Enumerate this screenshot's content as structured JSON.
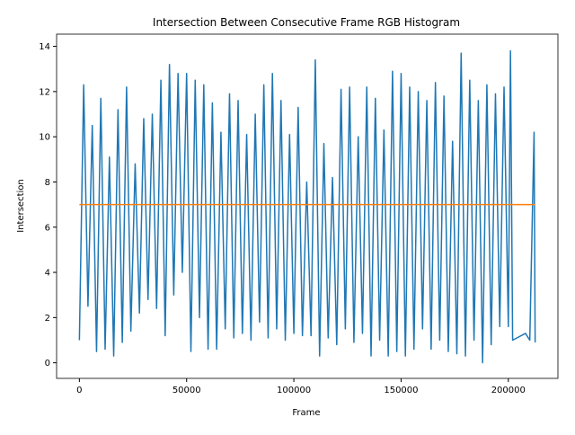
{
  "chart_data": {
    "type": "line",
    "title": "Intersection Between Consecutive Frame RGB Histogram",
    "x_label": "Frame",
    "y_label": "Intersection",
    "x": [
      0,
      2000,
      4000,
      6000,
      8000,
      10000,
      12000,
      14000,
      16000,
      18000,
      20000,
      22000,
      24000,
      26000,
      28000,
      30000,
      32000,
      34000,
      36000,
      38000,
      40000,
      42000,
      44000,
      46000,
      48000,
      50000,
      52000,
      54000,
      56000,
      58000,
      60000,
      62000,
      64000,
      66000,
      68000,
      70000,
      72000,
      74000,
      76000,
      78000,
      80000,
      82000,
      84000,
      86000,
      88000,
      90000,
      92000,
      94000,
      96000,
      98000,
      100000,
      102000,
      104000,
      106000,
      108000,
      110000,
      112000,
      114000,
      116000,
      118000,
      120000,
      122000,
      124000,
      126000,
      128000,
      130000,
      132000,
      134000,
      136000,
      138000,
      140000,
      142000,
      144000,
      146000,
      148000,
      150000,
      152000,
      154000,
      156000,
      158000,
      160000,
      162000,
      164000,
      166000,
      168000,
      170000,
      172000,
      174000,
      176000,
      178000,
      180000,
      182000,
      184000,
      186000,
      188000,
      190000,
      192000,
      194000,
      196000,
      198000,
      200000,
      201000,
      202000,
      204000,
      206000,
      208000,
      210000,
      212000,
      212500
    ],
    "series": [
      {
        "color": "#1f77b4",
        "values": [
          1.0,
          12.3,
          2.5,
          10.5,
          0.5,
          11.7,
          0.6,
          9.1,
          0.3,
          11.2,
          0.9,
          12.2,
          1.4,
          8.8,
          2.2,
          10.8,
          2.8,
          11.0,
          2.4,
          12.5,
          1.2,
          13.2,
          3.0,
          12.8,
          4.0,
          12.8,
          0.5,
          12.5,
          2.0,
          12.3,
          0.6,
          11.5,
          0.6,
          10.2,
          1.5,
          11.9,
          1.1,
          11.6,
          1.3,
          10.1,
          1.0,
          11.0,
          1.8,
          12.3,
          1.1,
          12.8,
          1.5,
          11.6,
          1.0,
          10.1,
          1.3,
          11.3,
          1.2,
          8.0,
          1.2,
          13.4,
          0.3,
          9.7,
          1.1,
          8.2,
          0.8,
          12.1,
          1.5,
          12.2,
          0.9,
          10.0,
          1.3,
          12.2,
          0.3,
          11.7,
          1.0,
          10.3,
          0.3,
          12.9,
          0.5,
          12.8,
          0.3,
          12.2,
          0.6,
          12.0,
          1.5,
          11.6,
          0.6,
          12.4,
          1.0,
          11.8,
          0.5,
          9.8,
          0.4,
          13.7,
          0.3,
          12.5,
          1.0,
          11.6,
          0.0,
          12.3,
          0.8,
          11.9,
          1.6,
          12.2,
          1.6,
          13.8,
          1.0,
          1.1,
          1.2,
          1.3,
          1.0,
          10.2,
          0.9
        ]
      },
      {
        "color": "#ff7f0e",
        "x": [
          0,
          212500
        ],
        "values": [
          7.0,
          7.0
        ]
      }
    ],
    "xlim": [
      -10625,
      223125
    ],
    "ylim": [
      -0.69,
      14.54
    ],
    "xticks": [
      0,
      50000,
      100000,
      150000,
      200000
    ],
    "yticks": [
      0,
      2,
      4,
      6,
      8,
      10,
      12,
      14
    ]
  }
}
